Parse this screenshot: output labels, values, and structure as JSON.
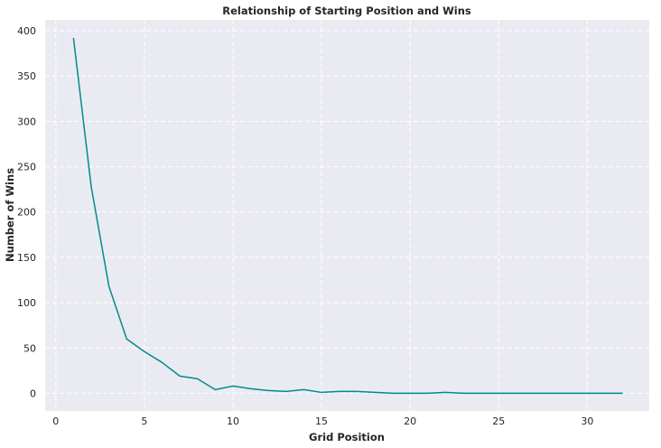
{
  "chart_data": {
    "type": "line",
    "title": "Relationship of Starting Position and Wins",
    "xlabel": "Grid Position",
    "ylabel": "Number of Wins",
    "xlim": [
      -0.6,
      33.5
    ],
    "ylim": [
      -19.5,
      412
    ],
    "xticks": [
      0,
      5,
      10,
      15,
      20,
      25,
      30
    ],
    "yticks": [
      0,
      50,
      100,
      150,
      200,
      250,
      300,
      350,
      400
    ],
    "grid": true,
    "colors": {
      "background": "#EAEAF2",
      "grid": "#FFFFFF",
      "line": "#008B8B"
    },
    "series": [
      {
        "x": [
          1,
          2,
          3,
          4,
          5,
          6,
          7,
          8,
          9,
          10,
          11,
          12,
          13,
          14,
          15,
          16,
          17,
          18,
          19,
          20,
          21,
          22,
          23,
          24,
          25,
          26,
          27,
          28,
          29,
          30,
          31,
          32
        ],
        "values": [
          392,
          228,
          118,
          60,
          46,
          34,
          19,
          16,
          4,
          8,
          5,
          3,
          2,
          4,
          1,
          2,
          2,
          1,
          0,
          0,
          0,
          1,
          0,
          0,
          0,
          0,
          0,
          0,
          0,
          0,
          0,
          0
        ]
      }
    ]
  }
}
